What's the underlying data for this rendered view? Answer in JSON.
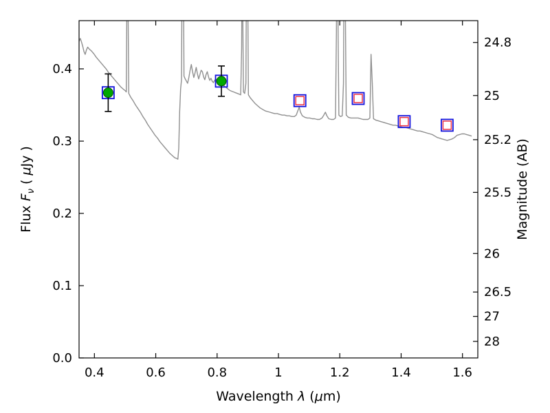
{
  "chart_data": {
    "type": "line",
    "title": "",
    "xlabel_parts": [
      {
        "t": "Wavelength  "
      },
      {
        "t": "λ",
        "i": true
      },
      {
        "t": "  ("
      },
      {
        "t": "μ",
        "i": true
      },
      {
        "t": "m)"
      }
    ],
    "ylabel_left_parts": [
      {
        "t": "Flux  "
      },
      {
        "t": "F",
        "i": true
      },
      {
        "t": "ν",
        "i": true,
        "sub": true
      },
      {
        "t": "  ( "
      },
      {
        "t": "μ",
        "i": true
      },
      {
        "t": "Jy )"
      }
    ],
    "ylabel_right_parts": [
      {
        "t": "Magnitude (AB)"
      }
    ],
    "xlim": [
      0.35,
      1.65
    ],
    "ylim": [
      0.0,
      0.4667
    ],
    "grid": false,
    "legend": "none",
    "xticks": [
      {
        "v": 0.4,
        "label": "0.4"
      },
      {
        "v": 0.6,
        "label": "0.6"
      },
      {
        "v": 0.8,
        "label": "0.8"
      },
      {
        "v": 1.0,
        "label": "1"
      },
      {
        "v": 1.2,
        "label": "1.2"
      },
      {
        "v": 1.4,
        "label": "1.4"
      },
      {
        "v": 1.6,
        "label": "1.6"
      }
    ],
    "yticks_left": [
      {
        "v": 0.0,
        "label": "0.0"
      },
      {
        "v": 0.1,
        "label": "0.1"
      },
      {
        "v": 0.2,
        "label": "0.2"
      },
      {
        "v": 0.3,
        "label": "0.3"
      },
      {
        "v": 0.4,
        "label": "0.4"
      }
    ],
    "yticks_right": [
      {
        "label": "24.8",
        "flux": 0.4365
      },
      {
        "label": "25",
        "flux": 0.3631
      },
      {
        "label": "25.2",
        "flux": 0.302
      },
      {
        "label": "25.5",
        "flux": 0.2291
      },
      {
        "label": "26",
        "flux": 0.1445
      },
      {
        "label": "26.5",
        "flux": 0.0912
      },
      {
        "label": "27",
        "flux": 0.0575
      },
      {
        "label": "28",
        "flux": 0.0229
      }
    ],
    "colors": {
      "spectrum": "#8f8f8f",
      "frame": "#000000",
      "green_circle_fill": "#00a800",
      "green_circle_edge": "#004d00",
      "blue_square": "#1111dd",
      "red_square": "#ee3344",
      "error_bar": "#000000"
    },
    "photometry": {
      "green_circles": [
        {
          "x": 0.445,
          "flux": 0.367,
          "err": 0.026
        },
        {
          "x": 0.814,
          "flux": 0.383,
          "err": 0.021
        }
      ],
      "blue_squares": [
        {
          "x": 0.445,
          "flux": 0.367
        },
        {
          "x": 0.814,
          "flux": 0.383
        },
        {
          "x": 1.07,
          "flux": 0.356
        },
        {
          "x": 1.26,
          "flux": 0.359
        },
        {
          "x": 1.41,
          "flux": 0.327
        },
        {
          "x": 1.55,
          "flux": 0.322
        }
      ],
      "red_squares": [
        {
          "x": 1.07,
          "flux": 0.356
        },
        {
          "x": 1.26,
          "flux": 0.359
        },
        {
          "x": 1.41,
          "flux": 0.327
        },
        {
          "x": 1.55,
          "flux": 0.322
        }
      ]
    },
    "spectrum": [
      [
        0.35,
        0.438
      ],
      [
        0.354,
        0.442
      ],
      [
        0.358,
        0.437
      ],
      [
        0.362,
        0.431
      ],
      [
        0.366,
        0.424
      ],
      [
        0.37,
        0.42
      ],
      [
        0.374,
        0.426
      ],
      [
        0.378,
        0.43
      ],
      [
        0.384,
        0.427
      ],
      [
        0.39,
        0.425
      ],
      [
        0.398,
        0.421
      ],
      [
        0.406,
        0.416
      ],
      [
        0.414,
        0.412
      ],
      [
        0.422,
        0.408
      ],
      [
        0.43,
        0.404
      ],
      [
        0.438,
        0.4
      ],
      [
        0.446,
        0.395
      ],
      [
        0.454,
        0.391
      ],
      [
        0.462,
        0.387
      ],
      [
        0.47,
        0.383
      ],
      [
        0.478,
        0.379
      ],
      [
        0.486,
        0.375
      ],
      [
        0.494,
        0.372
      ],
      [
        0.5,
        0.37
      ],
      [
        0.504,
        0.368
      ],
      [
        0.506,
        0.5
      ],
      [
        0.508,
        0.62
      ],
      [
        0.51,
        0.47
      ],
      [
        0.512,
        0.366
      ],
      [
        0.518,
        0.361
      ],
      [
        0.526,
        0.356
      ],
      [
        0.534,
        0.35
      ],
      [
        0.542,
        0.345
      ],
      [
        0.55,
        0.34
      ],
      [
        0.558,
        0.334
      ],
      [
        0.566,
        0.329
      ],
      [
        0.574,
        0.323
      ],
      [
        0.582,
        0.318
      ],
      [
        0.59,
        0.313
      ],
      [
        0.598,
        0.308
      ],
      [
        0.606,
        0.304
      ],
      [
        0.614,
        0.299
      ],
      [
        0.622,
        0.295
      ],
      [
        0.63,
        0.291
      ],
      [
        0.638,
        0.287
      ],
      [
        0.646,
        0.283
      ],
      [
        0.654,
        0.28
      ],
      [
        0.662,
        0.277
      ],
      [
        0.668,
        0.276
      ],
      [
        0.672,
        0.275
      ],
      [
        0.675,
        0.29
      ],
      [
        0.678,
        0.34
      ],
      [
        0.681,
        0.372
      ],
      [
        0.684,
        0.385
      ],
      [
        0.686,
        0.55
      ],
      [
        0.688,
        0.63
      ],
      [
        0.69,
        0.56
      ],
      [
        0.692,
        0.39
      ],
      [
        0.696,
        0.386
      ],
      [
        0.7,
        0.383
      ],
      [
        0.704,
        0.38
      ],
      [
        0.708,
        0.388
      ],
      [
        0.712,
        0.398
      ],
      [
        0.716,
        0.406
      ],
      [
        0.72,
        0.396
      ],
      [
        0.724,
        0.388
      ],
      [
        0.728,
        0.394
      ],
      [
        0.732,
        0.402
      ],
      [
        0.736,
        0.393
      ],
      [
        0.74,
        0.386
      ],
      [
        0.744,
        0.392
      ],
      [
        0.748,
        0.398
      ],
      [
        0.752,
        0.396
      ],
      [
        0.756,
        0.389
      ],
      [
        0.76,
        0.385
      ],
      [
        0.764,
        0.392
      ],
      [
        0.768,
        0.396
      ],
      [
        0.772,
        0.389
      ],
      [
        0.776,
        0.384
      ],
      [
        0.78,
        0.387
      ],
      [
        0.784,
        0.383
      ],
      [
        0.788,
        0.381
      ],
      [
        0.792,
        0.384
      ],
      [
        0.796,
        0.386
      ],
      [
        0.8,
        0.384
      ],
      [
        0.806,
        0.382
      ],
      [
        0.812,
        0.38
      ],
      [
        0.818,
        0.378
      ],
      [
        0.824,
        0.376
      ],
      [
        0.83,
        0.374
      ],
      [
        0.836,
        0.372
      ],
      [
        0.842,
        0.37
      ],
      [
        0.848,
        0.369
      ],
      [
        0.854,
        0.368
      ],
      [
        0.86,
        0.367
      ],
      [
        0.866,
        0.366
      ],
      [
        0.872,
        0.365
      ],
      [
        0.877,
        0.364
      ],
      [
        0.88,
        0.43
      ],
      [
        0.882,
        0.63
      ],
      [
        0.884,
        0.47
      ],
      [
        0.886,
        0.368
      ],
      [
        0.89,
        0.366
      ],
      [
        0.894,
        0.38
      ],
      [
        0.897,
        0.63
      ],
      [
        0.9,
        0.5
      ],
      [
        0.902,
        0.364
      ],
      [
        0.908,
        0.36
      ],
      [
        0.916,
        0.356
      ],
      [
        0.924,
        0.352
      ],
      [
        0.932,
        0.349
      ],
      [
        0.94,
        0.346
      ],
      [
        0.948,
        0.344
      ],
      [
        0.956,
        0.342
      ],
      [
        0.964,
        0.341
      ],
      [
        0.972,
        0.34
      ],
      [
        0.98,
        0.339
      ],
      [
        0.988,
        0.338
      ],
      [
        0.996,
        0.338
      ],
      [
        1.004,
        0.337
      ],
      [
        1.012,
        0.336
      ],
      [
        1.02,
        0.336
      ],
      [
        1.028,
        0.335
      ],
      [
        1.036,
        0.335
      ],
      [
        1.044,
        0.334
      ],
      [
        1.052,
        0.334
      ],
      [
        1.058,
        0.336
      ],
      [
        1.064,
        0.343
      ],
      [
        1.068,
        0.347
      ],
      [
        1.072,
        0.34
      ],
      [
        1.078,
        0.335
      ],
      [
        1.086,
        0.333
      ],
      [
        1.094,
        0.332
      ],
      [
        1.102,
        0.332
      ],
      [
        1.11,
        0.331
      ],
      [
        1.118,
        0.331
      ],
      [
        1.126,
        0.33
      ],
      [
        1.134,
        0.33
      ],
      [
        1.142,
        0.332
      ],
      [
        1.148,
        0.336
      ],
      [
        1.153,
        0.34
      ],
      [
        1.158,
        0.335
      ],
      [
        1.164,
        0.331
      ],
      [
        1.172,
        0.33
      ],
      [
        1.18,
        0.33
      ],
      [
        1.186,
        0.332
      ],
      [
        1.189,
        0.45
      ],
      [
        1.191,
        0.63
      ],
      [
        1.194,
        0.47
      ],
      [
        1.197,
        0.336
      ],
      [
        1.202,
        0.334
      ],
      [
        1.208,
        0.335
      ],
      [
        1.212,
        0.38
      ],
      [
        1.215,
        0.63
      ],
      [
        1.218,
        0.49
      ],
      [
        1.221,
        0.336
      ],
      [
        1.228,
        0.333
      ],
      [
        1.236,
        0.332
      ],
      [
        1.244,
        0.332
      ],
      [
        1.252,
        0.332
      ],
      [
        1.26,
        0.332
      ],
      [
        1.268,
        0.331
      ],
      [
        1.276,
        0.33
      ],
      [
        1.284,
        0.33
      ],
      [
        1.292,
        0.33
      ],
      [
        1.298,
        0.332
      ],
      [
        1.302,
        0.42
      ],
      [
        1.306,
        0.38
      ],
      [
        1.31,
        0.331
      ],
      [
        1.318,
        0.329
      ],
      [
        1.326,
        0.328
      ],
      [
        1.334,
        0.327
      ],
      [
        1.342,
        0.326
      ],
      [
        1.35,
        0.325
      ],
      [
        1.358,
        0.324
      ],
      [
        1.366,
        0.323
      ],
      [
        1.374,
        0.322
      ],
      [
        1.382,
        0.322
      ],
      [
        1.39,
        0.321
      ],
      [
        1.398,
        0.32
      ],
      [
        1.406,
        0.319
      ],
      [
        1.414,
        0.319
      ],
      [
        1.422,
        0.318
      ],
      [
        1.43,
        0.317
      ],
      [
        1.438,
        0.316
      ],
      [
        1.446,
        0.315
      ],
      [
        1.454,
        0.314
      ],
      [
        1.462,
        0.314
      ],
      [
        1.47,
        0.313
      ],
      [
        1.478,
        0.312
      ],
      [
        1.486,
        0.311
      ],
      [
        1.494,
        0.31
      ],
      [
        1.502,
        0.309
      ],
      [
        1.51,
        0.307
      ],
      [
        1.518,
        0.305
      ],
      [
        1.526,
        0.304
      ],
      [
        1.534,
        0.303
      ],
      [
        1.542,
        0.302
      ],
      [
        1.55,
        0.301
      ],
      [
        1.558,
        0.302
      ],
      [
        1.566,
        0.303
      ],
      [
        1.574,
        0.305
      ],
      [
        1.582,
        0.308
      ],
      [
        1.59,
        0.309
      ],
      [
        1.598,
        0.31
      ],
      [
        1.606,
        0.31
      ],
      [
        1.614,
        0.309
      ],
      [
        1.622,
        0.308
      ],
      [
        1.63,
        0.307
      ]
    ]
  }
}
